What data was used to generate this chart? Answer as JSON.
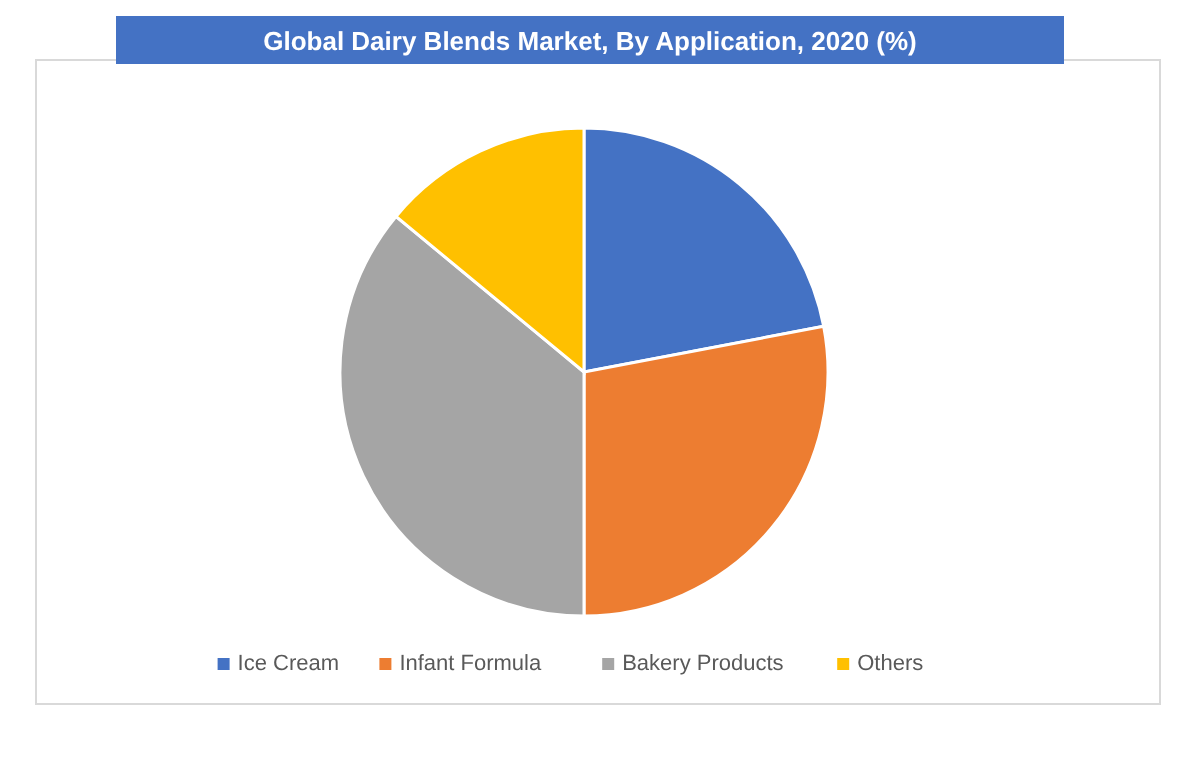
{
  "chart_data": {
    "type": "pie",
    "title": "Global Dairy Blends Market, By Application, 2020 (%)",
    "categories": [
      "Ice Cream",
      "Infant Formula",
      "Bakery Products",
      "Others"
    ],
    "values": [
      22,
      28,
      36,
      14
    ],
    "colors": [
      "#4472c4",
      "#ed7d31",
      "#a5a5a5",
      "#ffc000"
    ],
    "legend": "bottom"
  }
}
